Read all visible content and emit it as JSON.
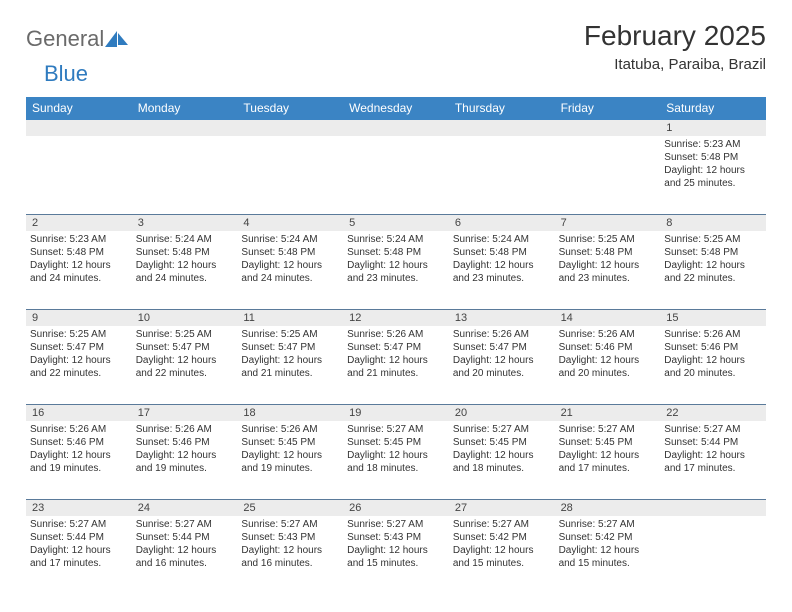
{
  "logo": {
    "text1": "General",
    "text2": "Blue"
  },
  "month": "February 2025",
  "location": "Itatuba, Paraiba, Brazil",
  "day_headers": [
    "Sunday",
    "Monday",
    "Tuesday",
    "Wednesday",
    "Thursday",
    "Friday",
    "Saturday"
  ],
  "colors": {
    "header_bg": "#3b84c4",
    "header_text": "#ffffff",
    "daynum_bg": "#ececec",
    "week_border": "#5a7a9a",
    "logo_blue": "#2f7bbf",
    "logo_gray": "#6a6a6a",
    "text": "#333333"
  },
  "weeks": [
    {
      "nums": [
        "",
        "",
        "",
        "",
        "",
        "",
        "1"
      ],
      "cells": [
        null,
        null,
        null,
        null,
        null,
        null,
        {
          "sr": "Sunrise: 5:23 AM",
          "ss": "Sunset: 5:48 PM",
          "d1": "Daylight: 12 hours",
          "d2": "and 25 minutes."
        }
      ]
    },
    {
      "nums": [
        "2",
        "3",
        "4",
        "5",
        "6",
        "7",
        "8"
      ],
      "cells": [
        {
          "sr": "Sunrise: 5:23 AM",
          "ss": "Sunset: 5:48 PM",
          "d1": "Daylight: 12 hours",
          "d2": "and 24 minutes."
        },
        {
          "sr": "Sunrise: 5:24 AM",
          "ss": "Sunset: 5:48 PM",
          "d1": "Daylight: 12 hours",
          "d2": "and 24 minutes."
        },
        {
          "sr": "Sunrise: 5:24 AM",
          "ss": "Sunset: 5:48 PM",
          "d1": "Daylight: 12 hours",
          "d2": "and 24 minutes."
        },
        {
          "sr": "Sunrise: 5:24 AM",
          "ss": "Sunset: 5:48 PM",
          "d1": "Daylight: 12 hours",
          "d2": "and 23 minutes."
        },
        {
          "sr": "Sunrise: 5:24 AM",
          "ss": "Sunset: 5:48 PM",
          "d1": "Daylight: 12 hours",
          "d2": "and 23 minutes."
        },
        {
          "sr": "Sunrise: 5:25 AM",
          "ss": "Sunset: 5:48 PM",
          "d1": "Daylight: 12 hours",
          "d2": "and 23 minutes."
        },
        {
          "sr": "Sunrise: 5:25 AM",
          "ss": "Sunset: 5:48 PM",
          "d1": "Daylight: 12 hours",
          "d2": "and 22 minutes."
        }
      ]
    },
    {
      "nums": [
        "9",
        "10",
        "11",
        "12",
        "13",
        "14",
        "15"
      ],
      "cells": [
        {
          "sr": "Sunrise: 5:25 AM",
          "ss": "Sunset: 5:47 PM",
          "d1": "Daylight: 12 hours",
          "d2": "and 22 minutes."
        },
        {
          "sr": "Sunrise: 5:25 AM",
          "ss": "Sunset: 5:47 PM",
          "d1": "Daylight: 12 hours",
          "d2": "and 22 minutes."
        },
        {
          "sr": "Sunrise: 5:25 AM",
          "ss": "Sunset: 5:47 PM",
          "d1": "Daylight: 12 hours",
          "d2": "and 21 minutes."
        },
        {
          "sr": "Sunrise: 5:26 AM",
          "ss": "Sunset: 5:47 PM",
          "d1": "Daylight: 12 hours",
          "d2": "and 21 minutes."
        },
        {
          "sr": "Sunrise: 5:26 AM",
          "ss": "Sunset: 5:47 PM",
          "d1": "Daylight: 12 hours",
          "d2": "and 20 minutes."
        },
        {
          "sr": "Sunrise: 5:26 AM",
          "ss": "Sunset: 5:46 PM",
          "d1": "Daylight: 12 hours",
          "d2": "and 20 minutes."
        },
        {
          "sr": "Sunrise: 5:26 AM",
          "ss": "Sunset: 5:46 PM",
          "d1": "Daylight: 12 hours",
          "d2": "and 20 minutes."
        }
      ]
    },
    {
      "nums": [
        "16",
        "17",
        "18",
        "19",
        "20",
        "21",
        "22"
      ],
      "cells": [
        {
          "sr": "Sunrise: 5:26 AM",
          "ss": "Sunset: 5:46 PM",
          "d1": "Daylight: 12 hours",
          "d2": "and 19 minutes."
        },
        {
          "sr": "Sunrise: 5:26 AM",
          "ss": "Sunset: 5:46 PM",
          "d1": "Daylight: 12 hours",
          "d2": "and 19 minutes."
        },
        {
          "sr": "Sunrise: 5:26 AM",
          "ss": "Sunset: 5:45 PM",
          "d1": "Daylight: 12 hours",
          "d2": "and 19 minutes."
        },
        {
          "sr": "Sunrise: 5:27 AM",
          "ss": "Sunset: 5:45 PM",
          "d1": "Daylight: 12 hours",
          "d2": "and 18 minutes."
        },
        {
          "sr": "Sunrise: 5:27 AM",
          "ss": "Sunset: 5:45 PM",
          "d1": "Daylight: 12 hours",
          "d2": "and 18 minutes."
        },
        {
          "sr": "Sunrise: 5:27 AM",
          "ss": "Sunset: 5:45 PM",
          "d1": "Daylight: 12 hours",
          "d2": "and 17 minutes."
        },
        {
          "sr": "Sunrise: 5:27 AM",
          "ss": "Sunset: 5:44 PM",
          "d1": "Daylight: 12 hours",
          "d2": "and 17 minutes."
        }
      ]
    },
    {
      "nums": [
        "23",
        "24",
        "25",
        "26",
        "27",
        "28",
        ""
      ],
      "cells": [
        {
          "sr": "Sunrise: 5:27 AM",
          "ss": "Sunset: 5:44 PM",
          "d1": "Daylight: 12 hours",
          "d2": "and 17 minutes."
        },
        {
          "sr": "Sunrise: 5:27 AM",
          "ss": "Sunset: 5:44 PM",
          "d1": "Daylight: 12 hours",
          "d2": "and 16 minutes."
        },
        {
          "sr": "Sunrise: 5:27 AM",
          "ss": "Sunset: 5:43 PM",
          "d1": "Daylight: 12 hours",
          "d2": "and 16 minutes."
        },
        {
          "sr": "Sunrise: 5:27 AM",
          "ss": "Sunset: 5:43 PM",
          "d1": "Daylight: 12 hours",
          "d2": "and 15 minutes."
        },
        {
          "sr": "Sunrise: 5:27 AM",
          "ss": "Sunset: 5:42 PM",
          "d1": "Daylight: 12 hours",
          "d2": "and 15 minutes."
        },
        {
          "sr": "Sunrise: 5:27 AM",
          "ss": "Sunset: 5:42 PM",
          "d1": "Daylight: 12 hours",
          "d2": "and 15 minutes."
        },
        null
      ]
    }
  ]
}
